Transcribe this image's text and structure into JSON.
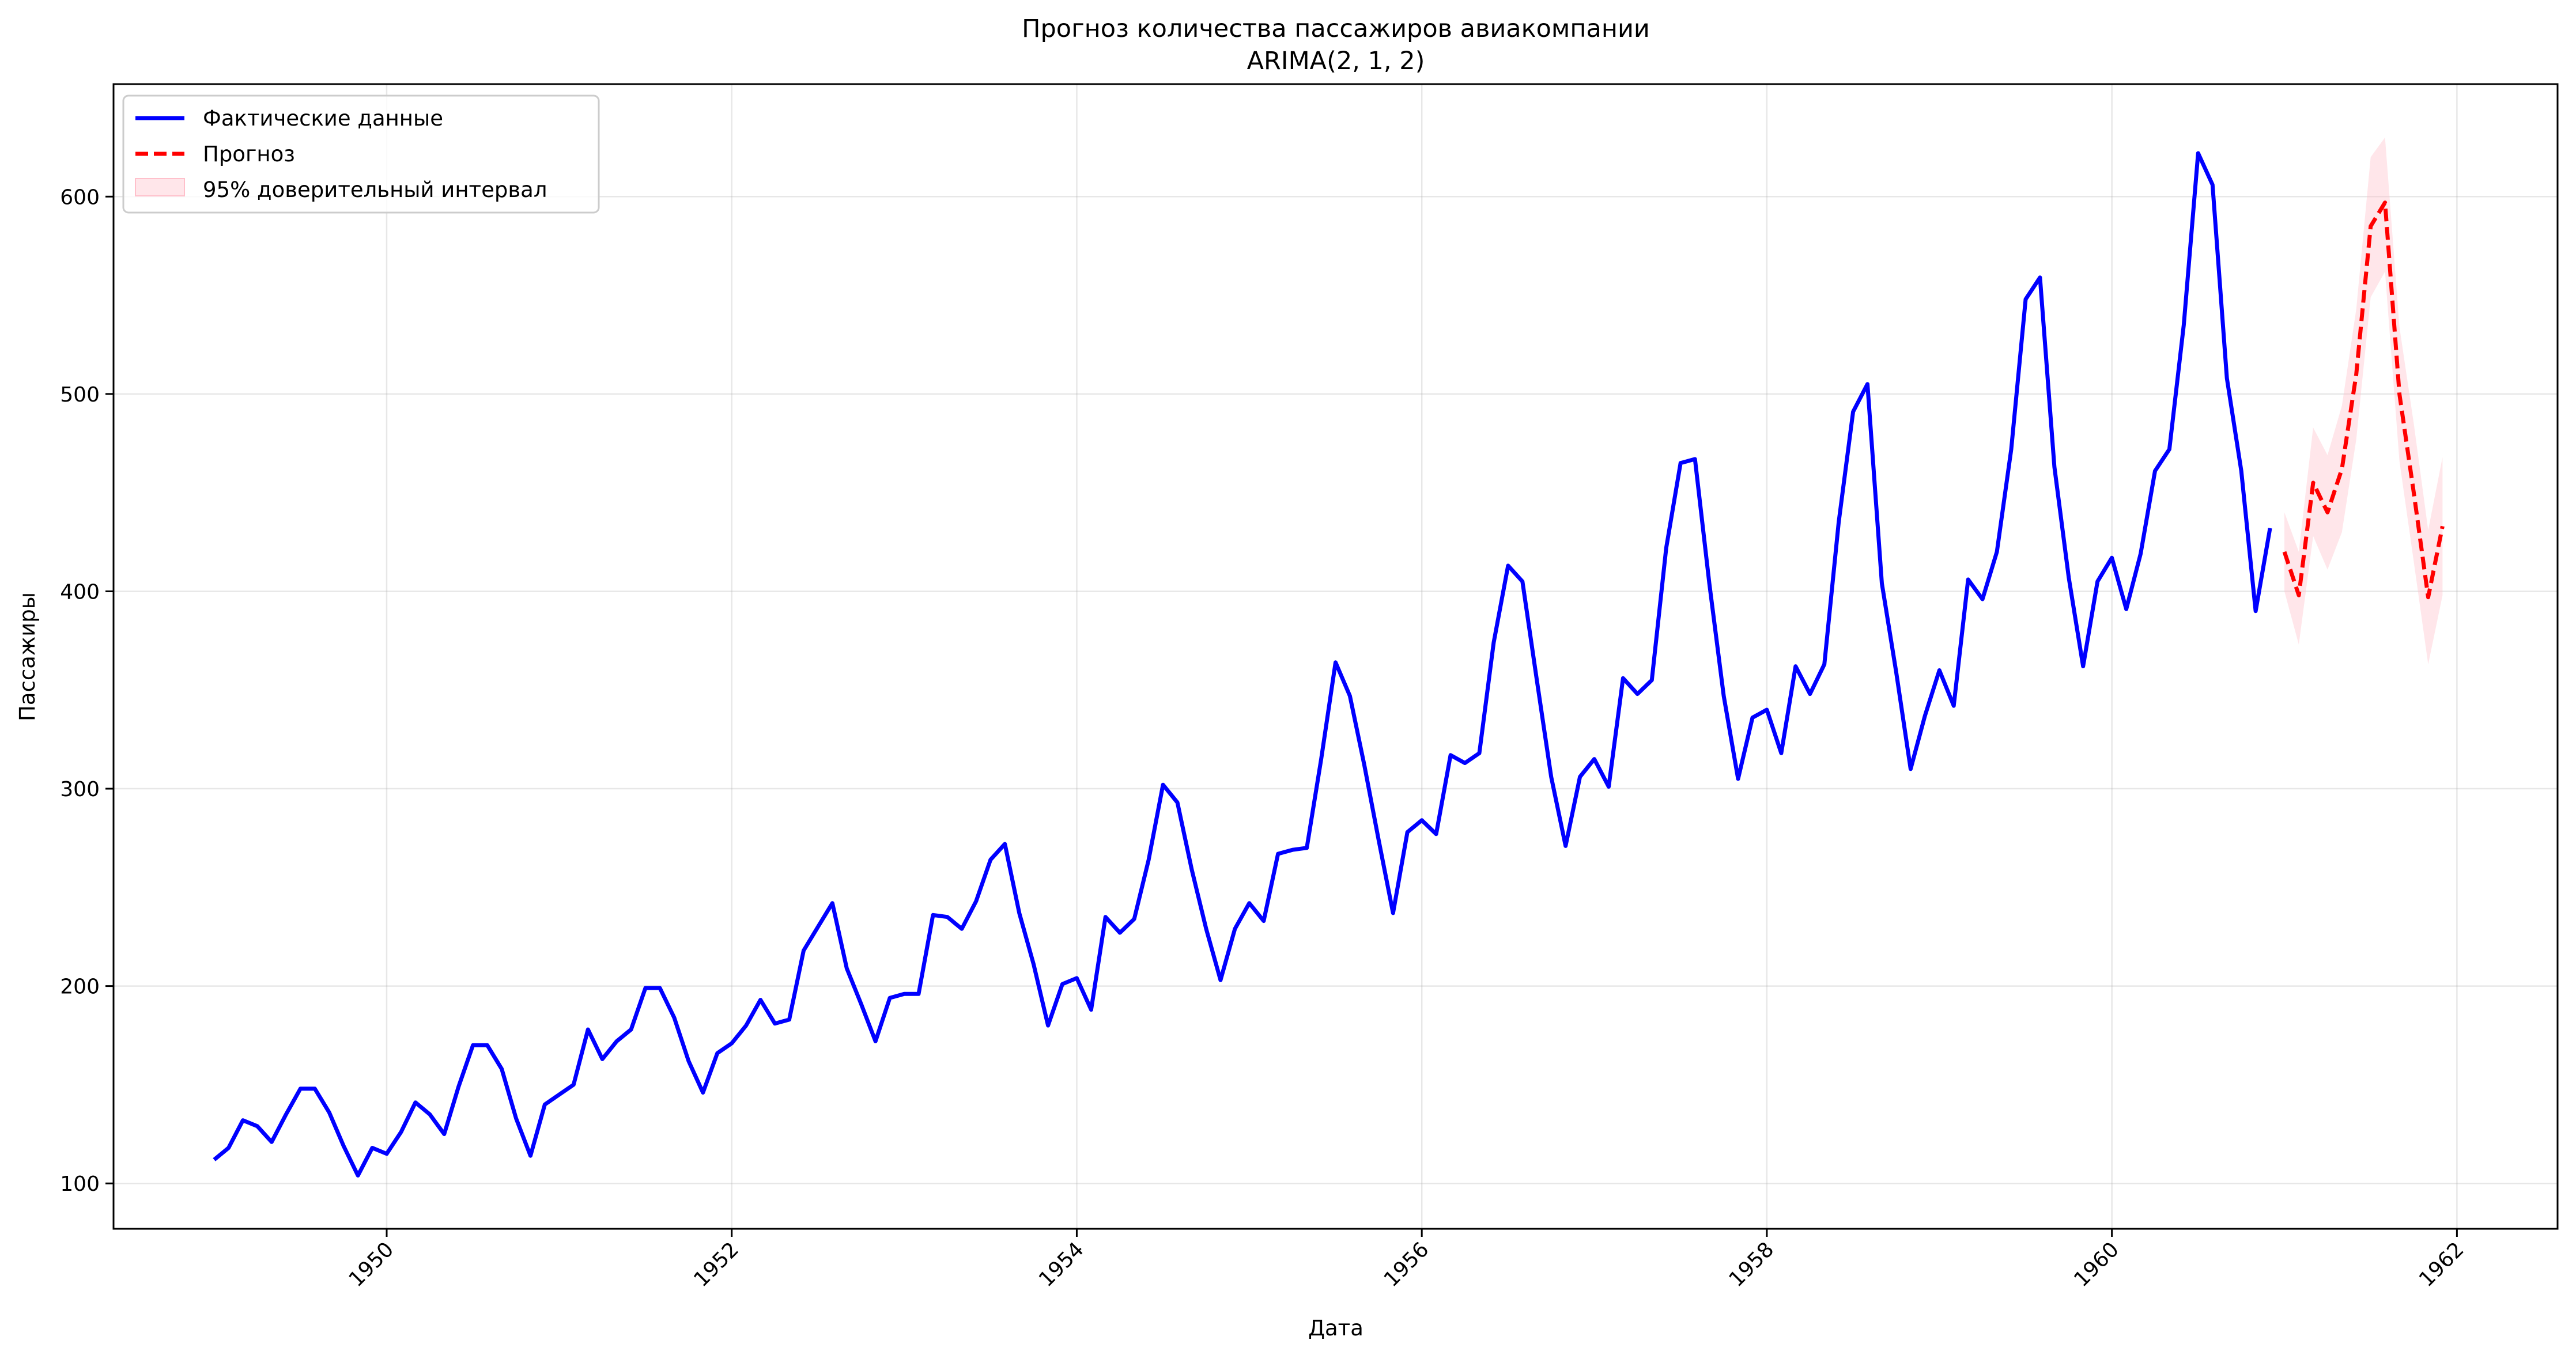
{
  "chart_data": {
    "type": "line",
    "title": "Прогноз количества пассажиров авиакомпании",
    "subtitle": "ARIMA(2, 1, 2)",
    "xlabel": "Дата",
    "ylabel": "Пассажиры",
    "x_start": "1949-01",
    "x_ticks": [
      "1950",
      "1952",
      "1954",
      "1956",
      "1958",
      "1960",
      "1962"
    ],
    "y_ticks": [
      100,
      200,
      300,
      400,
      500,
      600
    ],
    "xlim": [
      "1948-06",
      "1962-08"
    ],
    "ylim": [
      77,
      657
    ],
    "grid": true,
    "legend_position": "top-left",
    "series": [
      {
        "name": "Фактические данные",
        "color": "#0000ff",
        "style": "solid",
        "start": "1949-01",
        "values": [
          112,
          118,
          132,
          129,
          121,
          135,
          148,
          148,
          136,
          119,
          104,
          118,
          115,
          126,
          141,
          135,
          125,
          149,
          170,
          170,
          158,
          133,
          114,
          140,
          145,
          150,
          178,
          163,
          172,
          178,
          199,
          199,
          184,
          162,
          146,
          166,
          171,
          180,
          193,
          181,
          183,
          218,
          230,
          242,
          209,
          191,
          172,
          194,
          196,
          196,
          236,
          235,
          229,
          243,
          264,
          272,
          237,
          211,
          180,
          201,
          204,
          188,
          235,
          227,
          234,
          264,
          302,
          293,
          259,
          229,
          203,
          229,
          242,
          233,
          267,
          269,
          270,
          315,
          364,
          347,
          312,
          274,
          237,
          278,
          284,
          277,
          317,
          313,
          318,
          374,
          413,
          405,
          355,
          306,
          271,
          306,
          315,
          301,
          356,
          348,
          355,
          422,
          465,
          467,
          404,
          347,
          305,
          336,
          340,
          318,
          362,
          348,
          363,
          435,
          491,
          505,
          404,
          359,
          310,
          337,
          360,
          342,
          406,
          396,
          420,
          472,
          548,
          559,
          463,
          407,
          362,
          405,
          417,
          391,
          419,
          461,
          472,
          535,
          622,
          606,
          508,
          461,
          390,
          432
        ]
      },
      {
        "name": "Прогноз",
        "color": "#ff0000",
        "style": "dashed",
        "start": "1961-01",
        "values": [
          420,
          398,
          455,
          440,
          462,
          510,
          585,
          597,
          500,
          450,
          397,
          433
        ]
      }
    ],
    "confidence_band": {
      "name": "95% доверительный интервал",
      "color": "#ffc0cb",
      "start": "1961-01",
      "lower": [
        400,
        373,
        428,
        411,
        430,
        477,
        549,
        562,
        466,
        415,
        363,
        398
      ],
      "upper": [
        440,
        420,
        483,
        469,
        494,
        543,
        620,
        630,
        534,
        485,
        431,
        468
      ]
    }
  }
}
